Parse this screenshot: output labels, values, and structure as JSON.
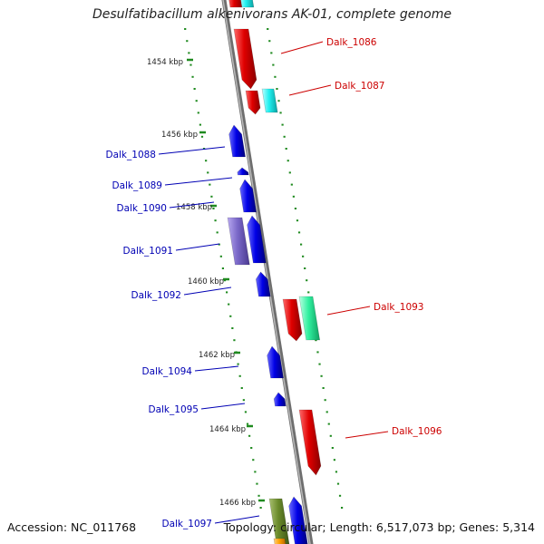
{
  "title": "Desulfatibacillum alkenivorans AK-01, complete genome",
  "accession": "Accession: NC_011768",
  "topology": "Topology: circular; Length: 6,517,073 bp; Genes: 5,314",
  "colors": {
    "backbone": "#8c8c8c",
    "forward_label": "#cc0000",
    "reverse_label": "#0000b4",
    "tick": "#1f8a1f",
    "kbp_label": "#222222"
  },
  "kbp_labels": [
    "1454 kbp",
    "1456 kbp",
    "1458 kbp",
    "1460 kbp",
    "1462 kbp",
    "1464 kbp",
    "1466 kbp"
  ],
  "gene_labels": [
    {
      "text": "Dalk_1086",
      "strand": "forward"
    },
    {
      "text": "Dalk_1087",
      "strand": "forward"
    },
    {
      "text": "Dalk_1088",
      "strand": "reverse"
    },
    {
      "text": "Dalk_1089",
      "strand": "reverse"
    },
    {
      "text": "Dalk_1090",
      "strand": "reverse"
    },
    {
      "text": "Dalk_1091",
      "strand": "reverse"
    },
    {
      "text": "Dalk_1092",
      "strand": "reverse"
    },
    {
      "text": "Dalk_1093",
      "strand": "forward"
    },
    {
      "text": "Dalk_1094",
      "strand": "reverse"
    },
    {
      "text": "Dalk_1095",
      "strand": "reverse"
    },
    {
      "text": "Dalk_1096",
      "strand": "forward"
    },
    {
      "text": "Dalk_1097",
      "strand": "reverse"
    }
  ]
}
